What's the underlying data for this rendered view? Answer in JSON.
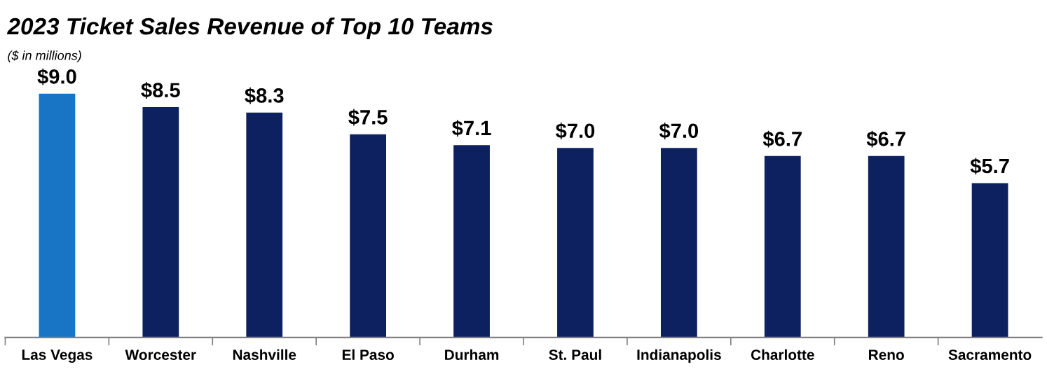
{
  "chart_data": {
    "type": "bar",
    "title": "2023 Ticket Sales Revenue of Top 10 Teams",
    "subtitle": "($ in millions)",
    "categories": [
      "Las Vegas",
      "Worcester",
      "Nashville",
      "El Paso",
      "Durham",
      "St. Paul",
      "Indianapolis",
      "Charlotte",
      "Reno",
      "Sacramento"
    ],
    "values": [
      9.0,
      8.5,
      8.3,
      7.5,
      7.1,
      7.0,
      7.0,
      6.7,
      6.7,
      5.7
    ],
    "value_labels": [
      "$9.0",
      "$8.5",
      "$8.3",
      "$7.5",
      "$7.1",
      "$7.0",
      "$7.0",
      "$6.7",
      "$6.7",
      "$5.7"
    ],
    "colors": [
      "#1874c4",
      "#0d2161",
      "#0d2161",
      "#0d2161",
      "#0d2161",
      "#0d2161",
      "#0d2161",
      "#0d2161",
      "#0d2161",
      "#0d2161"
    ],
    "tick_labels": "x",
    "grid": false,
    "legend": false
  }
}
